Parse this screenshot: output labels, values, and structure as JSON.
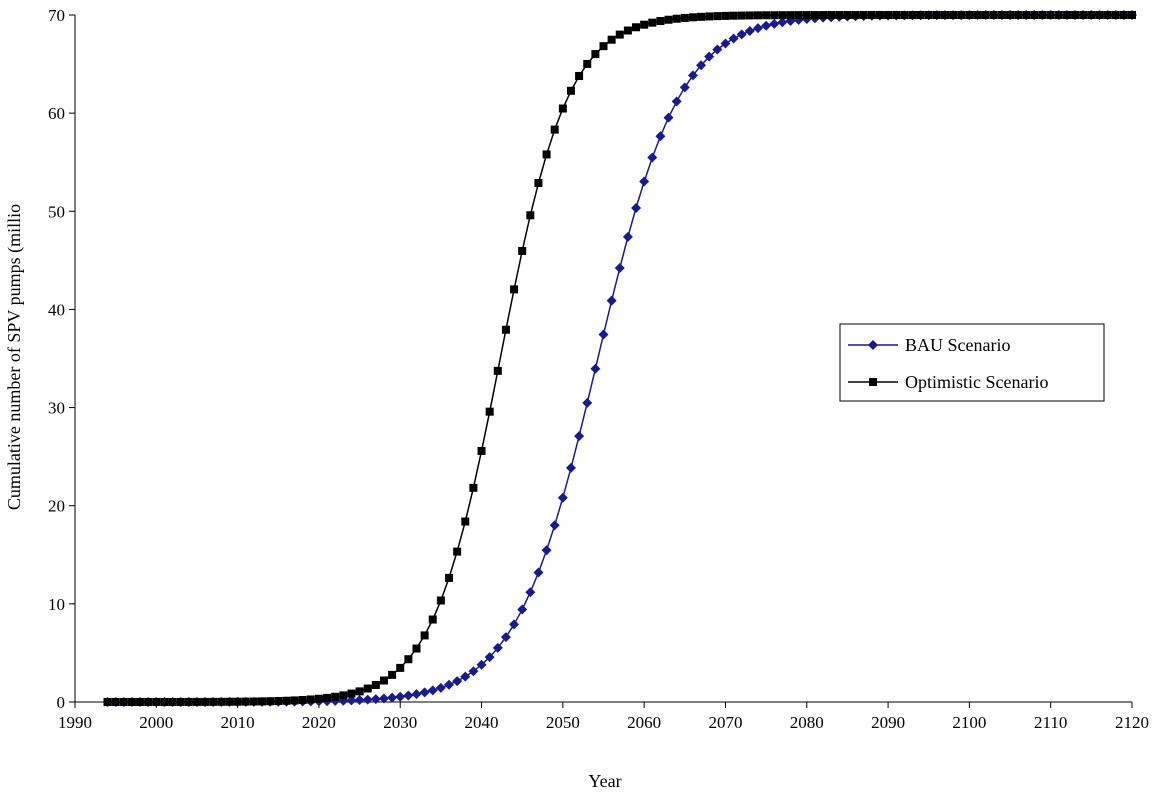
{
  "chart_data": {
    "type": "line",
    "title": "",
    "xlabel": "Year",
    "ylabel": "Cumulative number of SPV pumps (millio",
    "xlim": [
      1990,
      2120
    ],
    "ylim": [
      0,
      70
    ],
    "x_ticks": [
      1990,
      2000,
      2010,
      2020,
      2030,
      2040,
      2050,
      2060,
      2070,
      2080,
      2090,
      2100,
      2110,
      2120
    ],
    "y_ticks": [
      0,
      10,
      20,
      30,
      40,
      50,
      60,
      70
    ],
    "grid": false,
    "legend_position": "right",
    "x_range": {
      "start": 1994,
      "end": 2120,
      "step": 1
    },
    "series": [
      {
        "name": "BAU Scenario",
        "color": "#1a1a8c",
        "marker": "diamond",
        "model": {
          "capacity": 70,
          "midpoint": 2054.3,
          "rate": 0.2
        }
      },
      {
        "name": "Optimistic Scenario",
        "color": "#000000",
        "marker": "square",
        "model": {
          "capacity": 70,
          "midpoint": 2042.3,
          "rate": 0.24
        }
      }
    ]
  }
}
